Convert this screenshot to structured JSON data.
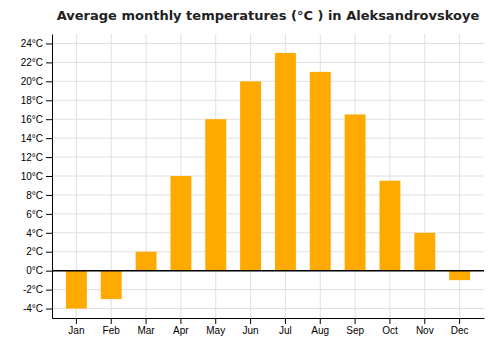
{
  "chart_data": {
    "type": "bar",
    "title": "Average monthly temperatures (°C ) in Aleksandrovskoye",
    "categories": [
      "Jan",
      "Feb",
      "Mar",
      "Apr",
      "May",
      "Jun",
      "Jul",
      "Aug",
      "Sep",
      "Oct",
      "Nov",
      "Dec"
    ],
    "values": [
      -4,
      -3,
      2,
      10,
      16,
      20,
      23,
      21,
      16.5,
      9.5,
      4,
      -1
    ],
    "color": "#FFAA00",
    "ylim": [
      -5,
      25
    ],
    "yticks": [
      {
        "value": -4,
        "label": "-4°C"
      },
      {
        "value": -2,
        "label": "-2°C"
      },
      {
        "value": 0,
        "label": "0°C"
      },
      {
        "value": 2,
        "label": "2°C"
      },
      {
        "value": 4,
        "label": "4°C"
      },
      {
        "value": 6,
        "label": "6°C"
      },
      {
        "value": 8,
        "label": "8°C"
      },
      {
        "value": 10,
        "label": "10°C"
      },
      {
        "value": 12,
        "label": "12°C"
      },
      {
        "value": 14,
        "label": "14°C"
      },
      {
        "value": 16,
        "label": "16°C"
      },
      {
        "value": 18,
        "label": "18°C"
      },
      {
        "value": 20,
        "label": "20°C"
      },
      {
        "value": 22,
        "label": "22°C"
      },
      {
        "value": 24,
        "label": "24°C"
      }
    ],
    "grid": true
  }
}
